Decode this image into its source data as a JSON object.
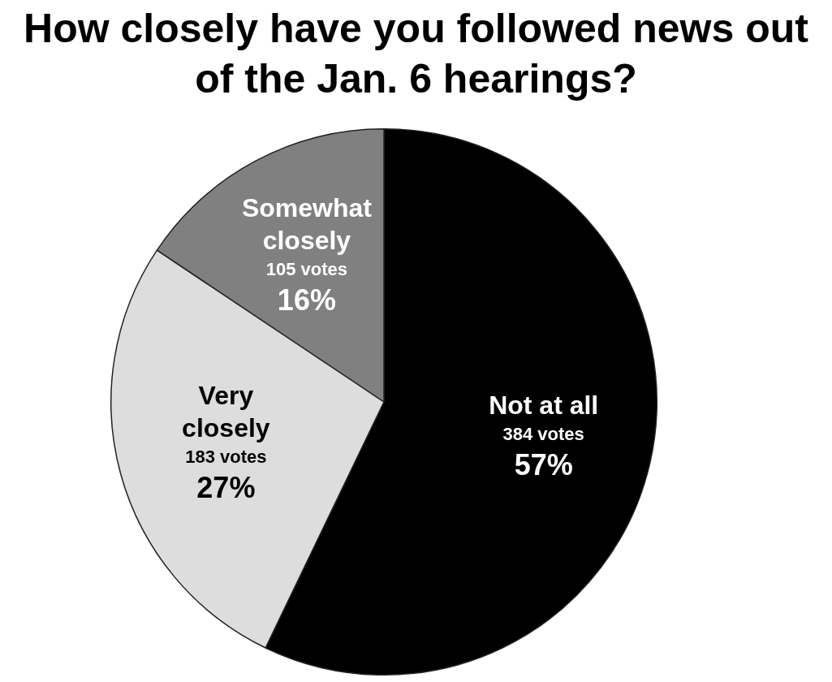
{
  "chart_data": {
    "type": "pie",
    "title": "How closely have you followed news out of the Jan. 6 hearings?",
    "categories": [
      "Not at all",
      "Very closely",
      "Somewhat closely"
    ],
    "values": [
      384,
      183,
      105
    ],
    "colors": [
      "#000000",
      "#dddddd",
      "#808080"
    ],
    "value_labels": [
      "384 votes\n57%",
      "183 votes\n27%",
      "105 votes\n16%"
    ],
    "legend": false
  }
}
